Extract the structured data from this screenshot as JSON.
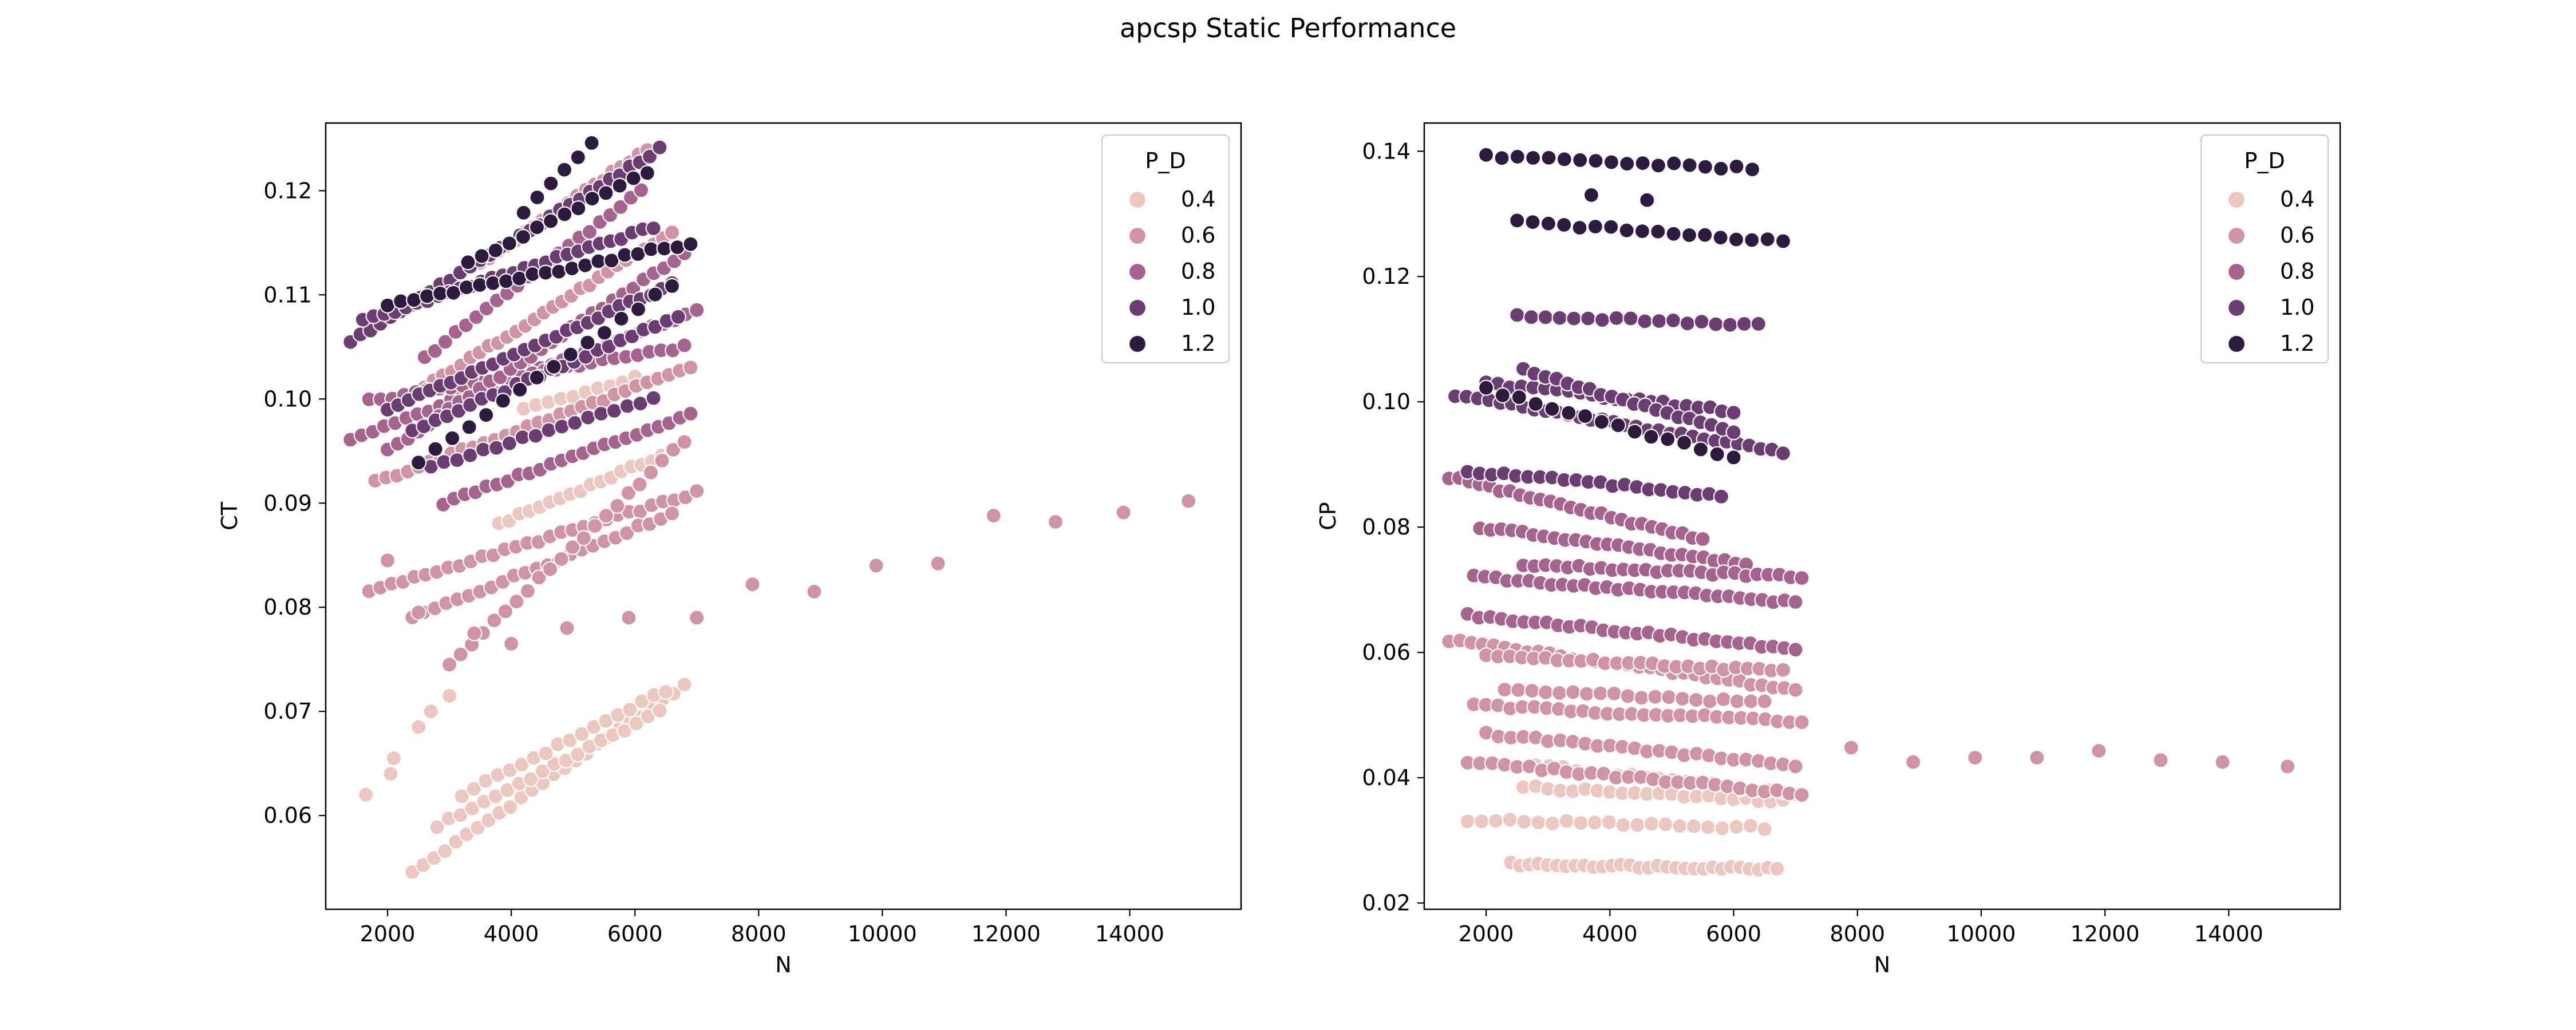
{
  "figure": {
    "title": "apcsp Static Performance"
  },
  "colors": {
    "0.4": "#ebc7c0",
    "0.6": "#cf93a3",
    "0.8": "#a6638d",
    "1.0": "#6b3d72",
    "1.2": "#2e1a3f"
  },
  "chart_data": [
    {
      "type": "scatter",
      "xlabel": "N",
      "ylabel": "CT",
      "xlim": [
        1000,
        15800
      ],
      "ylim": [
        0.051,
        0.1265
      ],
      "xticks": [
        2000,
        4000,
        6000,
        8000,
        10000,
        12000,
        14000
      ],
      "yticks": [
        0.06,
        0.07,
        0.08,
        0.09,
        0.1,
        0.11,
        0.12
      ],
      "legend": {
        "title": "P_D",
        "entries": [
          "0.4",
          "0.6",
          "0.8",
          "1.0",
          "1.2"
        ],
        "placement": "top-right"
      },
      "grid": false,
      "series": [
        {
          "name": "0.4",
          "bands": [
            {
              "x0": 2400,
              "y0": 0.0545,
              "x1": 6800,
              "y1": 0.0725,
              "n": 26
            },
            {
              "x0": 2800,
              "y0": 0.059,
              "x1": 6400,
              "y1": 0.07,
              "n": 20
            },
            {
              "x0": 3200,
              "y0": 0.062,
              "x1": 6500,
              "y1": 0.072,
              "n": 18
            },
            {
              "x0": 3800,
              "y0": 0.088,
              "x1": 6600,
              "y1": 0.095,
              "n": 18
            },
            {
              "x0": 4200,
              "y0": 0.099,
              "x1": 6000,
              "y1": 0.102,
              "n": 10
            }
          ],
          "points": [
            [
              1650,
              0.062
            ],
            [
              2050,
              0.064
            ],
            [
              2100,
              0.0655
            ],
            [
              2500,
              0.0685
            ],
            [
              2700,
              0.07
            ],
            [
              3000,
              0.0715
            ]
          ]
        },
        {
          "name": "0.6",
          "bands": [
            {
              "x0": 1700,
              "y0": 0.0815,
              "x1": 7000,
              "y1": 0.091,
              "n": 30
            },
            {
              "x0": 2400,
              "y0": 0.079,
              "x1": 6600,
              "y1": 0.089,
              "n": 24
            },
            {
              "x0": 3000,
              "y0": 0.0745,
              "x1": 6800,
              "y1": 0.096,
              "n": 22
            },
            {
              "x0": 1800,
              "y0": 0.092,
              "x1": 6900,
              "y1": 0.103,
              "n": 30
            },
            {
              "x0": 2300,
              "y0": 0.1,
              "x1": 6600,
              "y1": 0.116,
              "n": 30
            },
            {
              "x0": 3500,
              "y0": 0.113,
              "x1": 6200,
              "y1": 0.124,
              "n": 20
            }
          ],
          "points": [
            [
              2000,
              0.0845
            ],
            [
              2500,
              0.0795
            ],
            [
              3400,
              0.0775
            ],
            [
              4000,
              0.0765
            ],
            [
              4900,
              0.078
            ],
            [
              5900,
              0.079
            ],
            [
              7000,
              0.079
            ],
            [
              7900,
              0.0822
            ],
            [
              8900,
              0.0815
            ],
            [
              9900,
              0.084
            ],
            [
              10900,
              0.0842
            ],
            [
              11800,
              0.0888
            ],
            [
              12800,
              0.0882
            ],
            [
              13900,
              0.0891
            ],
            [
              14950,
              0.0902
            ]
          ]
        },
        {
          "name": "0.8",
          "bands": [
            {
              "x0": 1400,
              "y0": 0.0962,
              "x1": 7000,
              "y1": 0.1085,
              "n": 32
            },
            {
              "x0": 1700,
              "y0": 0.0998,
              "x1": 6800,
              "y1": 0.105,
              "n": 28
            },
            {
              "x0": 2000,
              "y0": 0.095,
              "x1": 6800,
              "y1": 0.114,
              "n": 30
            },
            {
              "x0": 2900,
              "y0": 0.09,
              "x1": 6900,
              "y1": 0.0985,
              "n": 24
            },
            {
              "x0": 2600,
              "y0": 0.104,
              "x1": 6100,
              "y1": 0.12,
              "n": 22
            }
          ]
        },
        {
          "name": "1.0",
          "bands": [
            {
              "x0": 1400,
              "y0": 0.1055,
              "x1": 6400,
              "y1": 0.124,
              "n": 32
            },
            {
              "x0": 1600,
              "y0": 0.1075,
              "x1": 6300,
              "y1": 0.1165,
              "n": 28
            },
            {
              "x0": 2000,
              "y0": 0.099,
              "x1": 6600,
              "y1": 0.111,
              "n": 28
            },
            {
              "x0": 2400,
              "y0": 0.097,
              "x1": 6700,
              "y1": 0.108,
              "n": 24
            },
            {
              "x0": 2700,
              "y0": 0.0935,
              "x1": 6300,
              "y1": 0.1,
              "n": 18
            }
          ]
        },
        {
          "name": "1.2",
          "bands": [
            {
              "x0": 2000,
              "y0": 0.109,
              "x1": 6900,
              "y1": 0.115,
              "n": 24
            },
            {
              "x0": 3300,
              "y0": 0.113,
              "x1": 6200,
              "y1": 0.1218,
              "n": 14
            },
            {
              "x0": 2500,
              "y0": 0.094,
              "x1": 6600,
              "y1": 0.111,
              "n": 16
            },
            {
              "x0": 4200,
              "y0": 0.118,
              "x1": 5300,
              "y1": 0.1245,
              "n": 6
            }
          ]
        }
      ]
    },
    {
      "type": "scatter",
      "xlabel": "N",
      "ylabel": "CP",
      "xlim": [
        1000,
        15800
      ],
      "ylim": [
        0.019,
        0.1445
      ],
      "xticks": [
        2000,
        4000,
        6000,
        8000,
        10000,
        12000,
        14000
      ],
      "yticks": [
        0.02,
        0.04,
        0.06,
        0.08,
        0.1,
        0.12,
        0.14
      ],
      "legend": {
        "title": "P_D",
        "entries": [
          "0.4",
          "0.6",
          "0.8",
          "1.0",
          "1.2"
        ],
        "placement": "top-right"
      },
      "grid": false,
      "series": [
        {
          "name": "0.4",
          "bands": [
            {
              "x0": 2400,
              "y0": 0.0262,
              "x1": 6700,
              "y1": 0.0255,
              "n": 30
            },
            {
              "x0": 1700,
              "y0": 0.0333,
              "x1": 6500,
              "y1": 0.032,
              "n": 22
            },
            {
              "x0": 2600,
              "y0": 0.0385,
              "x1": 6800,
              "y1": 0.0362,
              "n": 22
            },
            {
              "x0": 2800,
              "y0": 0.042,
              "x1": 7000,
              "y1": 0.0375,
              "n": 20
            }
          ]
        },
        {
          "name": "0.6",
          "bands": [
            {
              "x0": 1700,
              "y0": 0.0425,
              "x1": 7100,
              "y1": 0.0375,
              "n": 28
            },
            {
              "x0": 2000,
              "y0": 0.047,
              "x1": 7000,
              "y1": 0.042,
              "n": 26
            },
            {
              "x0": 1800,
              "y0": 0.0515,
              "x1": 7100,
              "y1": 0.049,
              "n": 28
            },
            {
              "x0": 2300,
              "y0": 0.054,
              "x1": 6500,
              "y1": 0.052,
              "n": 20
            },
            {
              "x0": 1400,
              "y0": 0.062,
              "x1": 7000,
              "y1": 0.054,
              "n": 32
            },
            {
              "x0": 2000,
              "y0": 0.0595,
              "x1": 6800,
              "y1": 0.057,
              "n": 26
            }
          ],
          "points": [
            [
              7900,
              0.0448
            ],
            [
              8900,
              0.0425
            ],
            [
              9900,
              0.0432
            ],
            [
              10900,
              0.0432
            ],
            [
              11900,
              0.0443
            ],
            [
              12900,
              0.0428
            ],
            [
              13900,
              0.0425
            ],
            [
              14950,
              0.0418
            ]
          ]
        },
        {
          "name": "0.8",
          "bands": [
            {
              "x0": 1700,
              "y0": 0.066,
              "x1": 7000,
              "y1": 0.0605,
              "n": 30
            },
            {
              "x0": 1800,
              "y0": 0.072,
              "x1": 7000,
              "y1": 0.068,
              "n": 30
            },
            {
              "x0": 1900,
              "y0": 0.08,
              "x1": 6200,
              "y1": 0.074,
              "n": 26
            },
            {
              "x0": 1400,
              "y0": 0.088,
              "x1": 5500,
              "y1": 0.078,
              "n": 26
            },
            {
              "x0": 2600,
              "y0": 0.074,
              "x1": 7100,
              "y1": 0.072,
              "n": 26
            }
          ]
        },
        {
          "name": "1.0",
          "bands": [
            {
              "x0": 1500,
              "y0": 0.101,
              "x1": 6800,
              "y1": 0.092,
              "n": 30
            },
            {
              "x0": 2000,
              "y0": 0.103,
              "x1": 6000,
              "y1": 0.0985,
              "n": 22
            },
            {
              "x0": 2600,
              "y0": 0.105,
              "x1": 6000,
              "y1": 0.095,
              "n": 20
            },
            {
              "x0": 1700,
              "y0": 0.089,
              "x1": 5800,
              "y1": 0.085,
              "n": 22
            },
            {
              "x0": 2500,
              "y0": 0.1138,
              "x1": 6400,
              "y1": 0.1122,
              "n": 18
            }
          ]
        },
        {
          "name": "1.2",
          "bands": [
            {
              "x0": 2000,
              "y0": 0.1392,
              "x1": 6300,
              "y1": 0.1372,
              "n": 18
            },
            {
              "x0": 2500,
              "y0": 0.1288,
              "x1": 6800,
              "y1": 0.1255,
              "n": 18
            },
            {
              "x0": 2000,
              "y0": 0.102,
              "x1": 6000,
              "y1": 0.091,
              "n": 16
            }
          ],
          "points": [
            [
              3700,
              0.133
            ],
            [
              4600,
              0.1322
            ]
          ]
        }
      ]
    }
  ]
}
